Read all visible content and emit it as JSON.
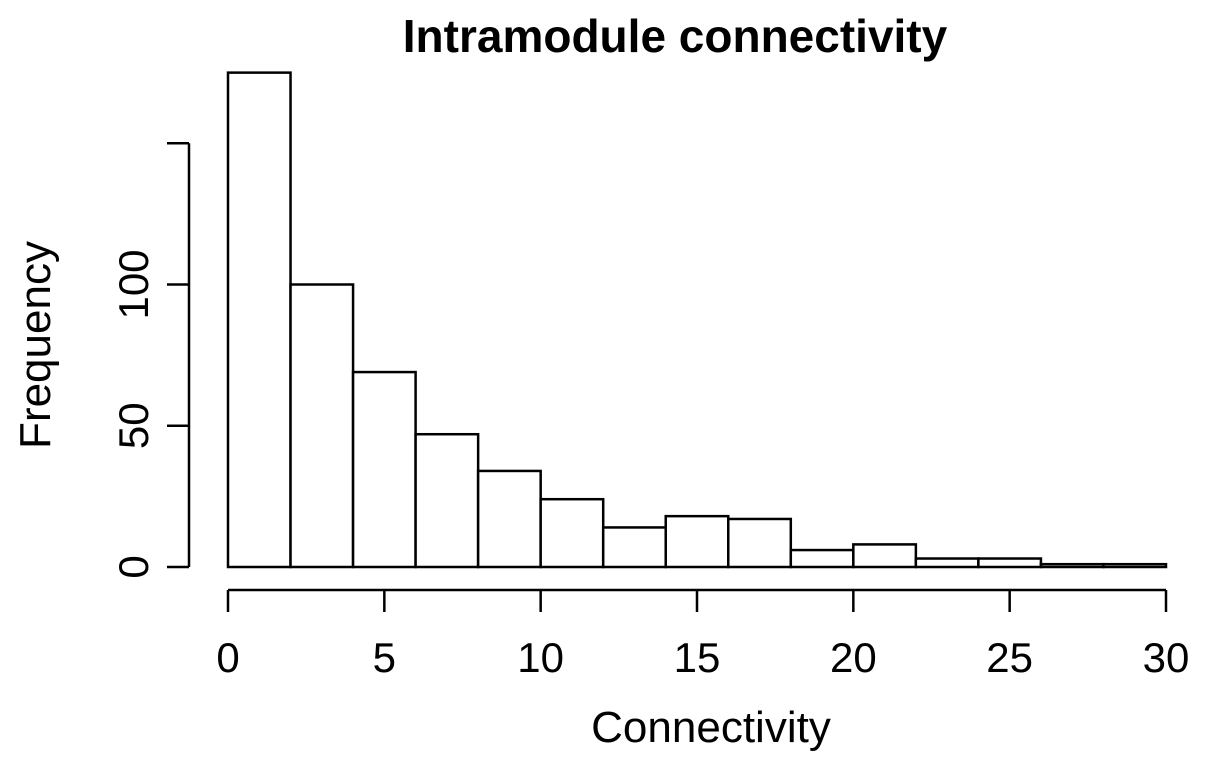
{
  "chart_data": {
    "type": "bar",
    "subtype": "histogram",
    "title": "Intramodule connectivity",
    "xlabel": "Connectivity",
    "ylabel": "Frequency",
    "bin_width": 2,
    "bins": [
      {
        "x0": 0,
        "x1": 2,
        "value": 175
      },
      {
        "x0": 2,
        "x1": 4,
        "value": 100
      },
      {
        "x0": 4,
        "x1": 6,
        "value": 69
      },
      {
        "x0": 6,
        "x1": 8,
        "value": 47
      },
      {
        "x0": 8,
        "x1": 10,
        "value": 34
      },
      {
        "x0": 10,
        "x1": 12,
        "value": 24
      },
      {
        "x0": 12,
        "x1": 14,
        "value": 14
      },
      {
        "x0": 14,
        "x1": 16,
        "value": 18
      },
      {
        "x0": 16,
        "x1": 18,
        "value": 17
      },
      {
        "x0": 18,
        "x1": 20,
        "value": 6
      },
      {
        "x0": 20,
        "x1": 22,
        "value": 8
      },
      {
        "x0": 22,
        "x1": 24,
        "value": 3
      },
      {
        "x0": 24,
        "x1": 26,
        "value": 3
      },
      {
        "x0": 26,
        "x1": 28,
        "value": 1
      },
      {
        "x0": 28,
        "x1": 30,
        "value": 1
      }
    ],
    "xlim": [
      0,
      30
    ],
    "ylim": [
      0,
      150
    ],
    "x_ticks": [
      0,
      5,
      10,
      15,
      20,
      25,
      30
    ],
    "y_ticks": [
      0,
      50,
      100,
      150
    ],
    "y_tick_labels": [
      "0",
      "50",
      "100",
      ""
    ],
    "grid": false,
    "legend": "none",
    "colors": {
      "bar_fill": "#ffffff",
      "bar_stroke": "#000000",
      "axis": "#000000"
    }
  }
}
